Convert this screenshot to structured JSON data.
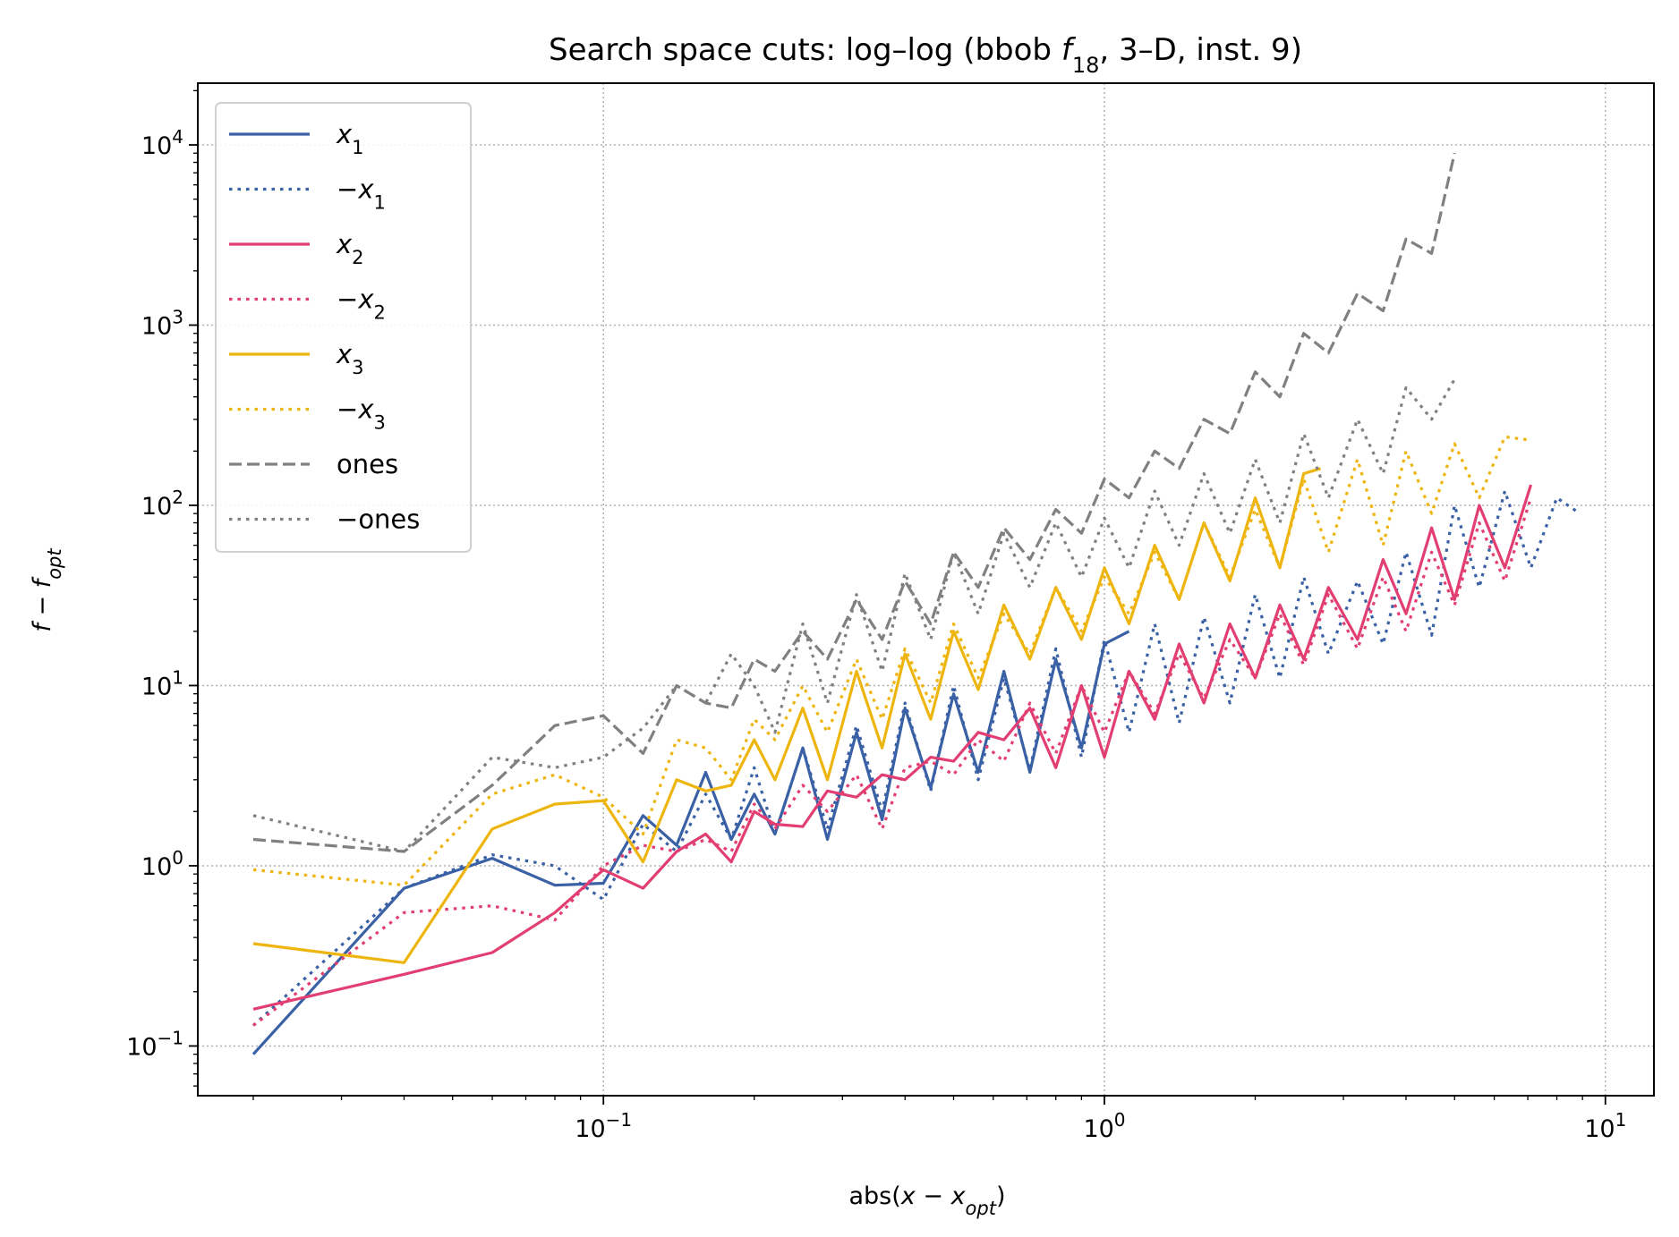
{
  "chart_data": {
    "type": "line",
    "title": "Search space cuts: log–log (bbob f18, 3–D, inst. 9)",
    "title_parts": {
      "prefix": "Search space cuts: log–log (bbob ",
      "func": "f",
      "func_sub": "18",
      "suffix": ", 3–D, inst. 9)"
    },
    "xlabel": "abs(x − x_opt)",
    "xlabel_parts": {
      "pre": "abs(",
      "var": "x",
      "minus": " − ",
      "var2": "x",
      "sub": "opt",
      "post": ")"
    },
    "ylabel": "f − f_opt",
    "ylabel_parts": {
      "var": "f",
      "minus": " − ",
      "var2": "f",
      "sub": "opt"
    },
    "x_scale": "log",
    "y_scale": "log",
    "xlim": [
      0.0155,
      12.5
    ],
    "ylim": [
      0.053,
      22000
    ],
    "grid": true,
    "legend_placement": "upper-left",
    "x_ticks": [
      {
        "value": 0.1,
        "label": "10",
        "exp": "−1"
      },
      {
        "value": 1,
        "label": "10",
        "exp": "0"
      },
      {
        "value": 10,
        "label": "10",
        "exp": "1"
      }
    ],
    "y_ticks": [
      {
        "value": 0.1,
        "label": "10",
        "exp": "−1"
      },
      {
        "value": 1,
        "label": "10",
        "exp": "0"
      },
      {
        "value": 10,
        "label": "10",
        "exp": "1"
      },
      {
        "value": 100,
        "label": "10",
        "exp": "2"
      },
      {
        "value": 1000,
        "label": "10",
        "exp": "3"
      },
      {
        "value": 10000,
        "label": "10",
        "exp": "4"
      }
    ],
    "series": [
      {
        "name": "x1",
        "label_sign": "",
        "label_var": "x",
        "label_sub": "1",
        "color": "#3a61a5",
        "style": "solid",
        "x": [
          0.02,
          0.04,
          0.06,
          0.08,
          0.1,
          0.12,
          0.14,
          0.16,
          0.18,
          0.2,
          0.22,
          0.25,
          0.28,
          0.32,
          0.36,
          0.4,
          0.45,
          0.5,
          0.56,
          0.63,
          0.71,
          0.8,
          0.9,
          1.0,
          1.12
        ],
        "y": [
          0.09,
          0.75,
          1.1,
          0.78,
          0.8,
          1.9,
          1.3,
          3.3,
          1.4,
          2.5,
          1.5,
          4.5,
          1.4,
          5.5,
          1.8,
          7.5,
          2.7,
          9.0,
          3.3,
          12,
          3.3,
          14,
          4.5,
          17,
          20
        ]
      },
      {
        "name": "−x1",
        "label_sign": "−",
        "label_var": "x",
        "label_sub": "1",
        "color": "#3a61a5",
        "style": "dotted",
        "x": [
          0.02,
          0.04,
          0.06,
          0.08,
          0.1,
          0.12,
          0.14,
          0.16,
          0.18,
          0.2,
          0.22,
          0.25,
          0.28,
          0.32,
          0.36,
          0.4,
          0.45,
          0.5,
          0.56,
          0.63,
          0.71,
          0.8,
          0.9,
          1.0,
          1.12,
          1.26,
          1.41,
          1.58,
          1.78,
          2.0,
          2.24,
          2.5,
          2.8,
          3.2,
          3.6,
          4.0,
          4.5,
          5.0,
          5.6,
          6.3,
          7.1,
          8.0,
          8.9
        ],
        "y": [
          0.13,
          0.75,
          1.15,
          1.0,
          0.65,
          1.7,
          1.2,
          2.5,
          1.4,
          3.5,
          1.5,
          4.5,
          1.6,
          6.0,
          2.0,
          8.0,
          2.6,
          10,
          3.0,
          11,
          3.4,
          16,
          4.0,
          18,
          5.5,
          22,
          6.2,
          24,
          8.0,
          32,
          11,
          40,
          15,
          38,
          17,
          55,
          19,
          100,
          35,
          120,
          45,
          110,
          90
        ]
      },
      {
        "name": "x2",
        "label_sign": "",
        "label_var": "x",
        "label_sub": "2",
        "color": "#e23e72",
        "style": "solid",
        "x": [
          0.02,
          0.04,
          0.06,
          0.08,
          0.1,
          0.12,
          0.14,
          0.16,
          0.18,
          0.2,
          0.22,
          0.25,
          0.28,
          0.32,
          0.36,
          0.4,
          0.45,
          0.5,
          0.56,
          0.63,
          0.71,
          0.8,
          0.9,
          1.0,
          1.12,
          1.26,
          1.41,
          1.58,
          1.78,
          2.0,
          2.24,
          2.5,
          2.8,
          3.2,
          3.6,
          4.0,
          4.5,
          5.0,
          5.6,
          6.3,
          7.1
        ],
        "y": [
          0.16,
          0.25,
          0.33,
          0.55,
          0.95,
          0.75,
          1.2,
          1.5,
          1.05,
          2.0,
          1.7,
          1.65,
          2.6,
          2.4,
          3.2,
          3.0,
          4.0,
          3.8,
          5.5,
          5.0,
          7.5,
          3.5,
          10,
          4.0,
          12,
          6.5,
          17,
          8.0,
          22,
          11,
          28,
          14,
          35,
          18,
          50,
          25,
          75,
          30,
          100,
          45,
          130
        ]
      },
      {
        "name": "−x2",
        "label_sign": "−",
        "label_var": "x",
        "label_sub": "2",
        "color": "#e23e72",
        "style": "dotted",
        "x": [
          0.02,
          0.04,
          0.06,
          0.08,
          0.1,
          0.12,
          0.14,
          0.16,
          0.18,
          0.2,
          0.22,
          0.25,
          0.28,
          0.32,
          0.36,
          0.4,
          0.45,
          0.5,
          0.56,
          0.63,
          0.71,
          0.8,
          0.9,
          1.0,
          1.12,
          1.26,
          1.41,
          1.58,
          1.78,
          2.0,
          2.24,
          2.5,
          2.8,
          3.2,
          3.6,
          4.0,
          4.5,
          5.0,
          5.6,
          6.3,
          7.1
        ],
        "y": [
          0.13,
          0.55,
          0.6,
          0.5,
          1.0,
          1.3,
          1.2,
          1.4,
          1.2,
          2.2,
          1.6,
          2.8,
          2.0,
          3.2,
          1.6,
          3.5,
          3.8,
          3.2,
          5.0,
          3.8,
          8.0,
          4.2,
          10,
          5.5,
          12,
          7.0,
          15,
          8.5,
          18,
          11,
          25,
          13,
          32,
          16,
          40,
          20,
          55,
          28,
          80,
          38,
          110
        ]
      },
      {
        "name": "x3",
        "label_sign": "",
        "label_var": "x",
        "label_sub": "3",
        "color": "#eeb50f",
        "style": "solid",
        "x": [
          0.02,
          0.04,
          0.06,
          0.08,
          0.1,
          0.12,
          0.14,
          0.16,
          0.18,
          0.2,
          0.22,
          0.25,
          0.28,
          0.32,
          0.36,
          0.4,
          0.45,
          0.5,
          0.56,
          0.63,
          0.71,
          0.8,
          0.9,
          1.0,
          1.12,
          1.26,
          1.41,
          1.58,
          1.78,
          2.0,
          2.24,
          2.5,
          2.7
        ],
        "y": [
          0.37,
          0.29,
          1.6,
          2.2,
          2.3,
          1.05,
          3.0,
          2.6,
          2.8,
          5.0,
          3.0,
          7.5,
          3.0,
          12,
          4.5,
          15,
          6.5,
          20,
          9.5,
          28,
          14,
          35,
          18,
          45,
          22,
          60,
          30,
          80,
          38,
          110,
          45,
          150,
          160
        ]
      },
      {
        "name": "−x3",
        "label_sign": "−",
        "label_var": "x",
        "label_sub": "3",
        "color": "#eeb50f",
        "style": "dotted",
        "x": [
          0.02,
          0.04,
          0.06,
          0.08,
          0.1,
          0.12,
          0.14,
          0.16,
          0.18,
          0.2,
          0.22,
          0.25,
          0.28,
          0.32,
          0.36,
          0.4,
          0.45,
          0.5,
          0.56,
          0.63,
          0.71,
          0.8,
          0.9,
          1.0,
          1.12,
          1.26,
          1.41,
          1.58,
          1.78,
          2.0,
          2.24,
          2.5,
          2.8,
          3.2,
          3.6,
          4.0,
          4.5,
          5.0,
          5.6,
          6.3,
          7.1
        ],
        "y": [
          0.95,
          0.78,
          2.5,
          3.2,
          2.4,
          1.5,
          5.0,
          4.5,
          3.0,
          6.5,
          5.0,
          10,
          5.5,
          14,
          6.5,
          16,
          8.0,
          22,
          11,
          25,
          15,
          35,
          20,
          40,
          25,
          55,
          30,
          80,
          40,
          95,
          45,
          140,
          55,
          180,
          60,
          200,
          90,
          220,
          110,
          240,
          230
        ]
      },
      {
        "name": "ones",
        "label_sign": "",
        "label_var": "",
        "label_sub": "",
        "label_text": "ones",
        "color": "#808080",
        "style": "dashed",
        "x": [
          0.02,
          0.04,
          0.06,
          0.08,
          0.1,
          0.12,
          0.14,
          0.16,
          0.18,
          0.2,
          0.22,
          0.25,
          0.28,
          0.32,
          0.36,
          0.4,
          0.45,
          0.5,
          0.56,
          0.63,
          0.71,
          0.8,
          0.9,
          1.0,
          1.12,
          1.26,
          1.41,
          1.58,
          1.78,
          2.0,
          2.24,
          2.5,
          2.8,
          3.2,
          3.6,
          4.0,
          4.5,
          5.0
        ],
        "y": [
          1.4,
          1.2,
          2.8,
          6.0,
          6.8,
          4.2,
          10,
          8.0,
          7.5,
          14,
          12,
          20,
          14,
          30,
          18,
          38,
          22,
          55,
          35,
          75,
          50,
          95,
          70,
          140,
          110,
          200,
          160,
          300,
          250,
          550,
          400,
          900,
          700,
          1500,
          1200,
          3000,
          2500,
          9000
        ]
      },
      {
        "name": "−ones",
        "label_sign": "−",
        "label_var": "",
        "label_sub": "",
        "label_text": "ones",
        "color": "#808080",
        "style": "dotted",
        "x": [
          0.02,
          0.04,
          0.06,
          0.08,
          0.1,
          0.12,
          0.14,
          0.16,
          0.18,
          0.2,
          0.22,
          0.25,
          0.28,
          0.32,
          0.36,
          0.4,
          0.45,
          0.5,
          0.56,
          0.63,
          0.71,
          0.8,
          0.9,
          1.0,
          1.12,
          1.26,
          1.41,
          1.58,
          1.78,
          2.0,
          2.24,
          2.5,
          2.8,
          3.2,
          3.6,
          4.0,
          4.5,
          5.0
        ],
        "y": [
          1.9,
          1.2,
          4.0,
          3.5,
          4.0,
          5.8,
          10,
          8.0,
          15,
          10,
          5.5,
          22,
          8.0,
          32,
          12,
          42,
          18,
          55,
          25,
          70,
          35,
          80,
          40,
          85,
          45,
          120,
          60,
          150,
          70,
          180,
          80,
          250,
          110,
          300,
          150,
          450,
          300,
          500
        ]
      }
    ]
  }
}
